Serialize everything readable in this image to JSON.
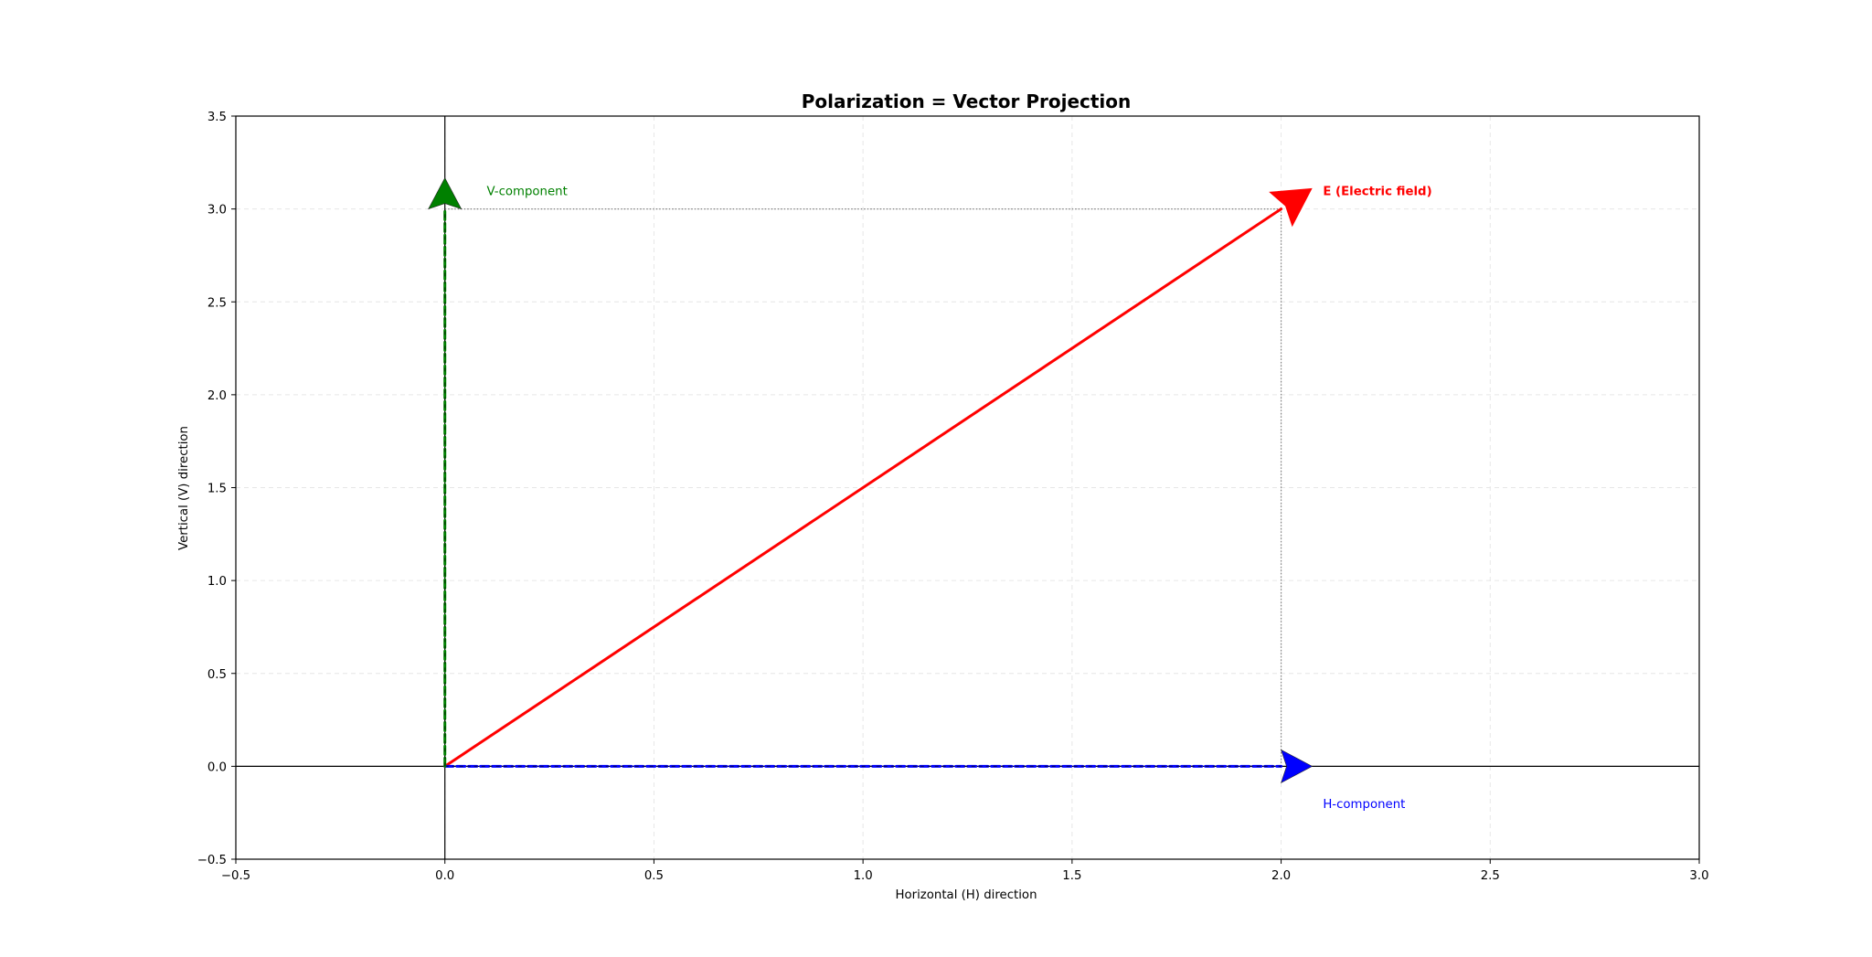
{
  "chart_data": {
    "type": "vector",
    "title": "Polarization = Vector Projection",
    "xlabel": "Horizontal (H) direction",
    "ylabel": "Vertical (V) direction",
    "xlim": [
      -0.5,
      3.0
    ],
    "ylim": [
      -0.5,
      3.5
    ],
    "xticks": [
      -0.5,
      0.0,
      0.5,
      1.0,
      1.5,
      2.0,
      2.5,
      3.0
    ],
    "yticks": [
      -0.5,
      0.0,
      0.5,
      1.0,
      1.5,
      2.0,
      2.5,
      3.0,
      3.5
    ],
    "xtick_labels": [
      "−0.5",
      "0.0",
      "0.5",
      "1.0",
      "1.5",
      "2.0",
      "2.5",
      "3.0"
    ],
    "ytick_labels": [
      "−0.5",
      "0.0",
      "0.5",
      "1.0",
      "1.5",
      "2.0",
      "2.5",
      "3.0",
      "3.5"
    ],
    "grid": true,
    "vectors": [
      {
        "name": "E (Electric field)",
        "from": [
          0,
          0
        ],
        "to": [
          2,
          3
        ],
        "color": "#ff0000",
        "style": "solid",
        "label_at": [
          2.1,
          3.1
        ],
        "bold": true
      },
      {
        "name": "H-component",
        "from": [
          0,
          0
        ],
        "to": [
          2,
          0
        ],
        "color": "#0000ff",
        "style": "dashed",
        "label_at": [
          2.1,
          -0.2
        ],
        "bold": false
      },
      {
        "name": "V-component",
        "from": [
          0,
          0
        ],
        "to": [
          0,
          3
        ],
        "color": "#008000",
        "style": "dashed",
        "label_at": [
          0.1,
          3.1
        ],
        "bold": false
      }
    ],
    "projection_lines": [
      {
        "from": [
          2,
          0
        ],
        "to": [
          2,
          3
        ]
      },
      {
        "from": [
          0,
          3
        ],
        "to": [
          2,
          3
        ]
      }
    ],
    "reference_lines": {
      "x": 0,
      "y": 0
    }
  }
}
